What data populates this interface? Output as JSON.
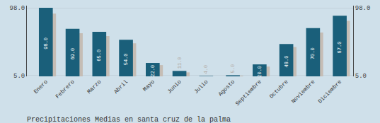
{
  "chart_data": {
    "type": "bar",
    "title": "Precipitaciones Medias en santa cruz de la palma",
    "categories": [
      "Enero",
      "Febrero",
      "Marzo",
      "Abril",
      "Mayo",
      "Junio",
      "Julio",
      "Agosto",
      "Septiembre",
      "Octubre",
      "Noviembre",
      "Diciembre"
    ],
    "series": [
      {
        "color": "#c5bdb5",
        "values": [
          90.0,
          63.0,
          59.0,
          49.0,
          19.0,
          9.0,
          3.5,
          4.5,
          17.0,
          44.0,
          64.0,
          80.0
        ]
      },
      {
        "color": "#1a5f7a",
        "values": [
          98.0,
          69.0,
          65.0,
          54.0,
          22.0,
          11.0,
          4.0,
          5.0,
          20.0,
          48.0,
          70.0,
          87.0
        ],
        "data_labels": true,
        "value_labels": [
          "98.0",
          "69.0",
          "65.0",
          "54.0",
          "22.0",
          "11.0",
          "4.0",
          "5.0",
          "20.0",
          "48.0",
          "70.0",
          "87.0"
        ]
      }
    ],
    "ylim": [
      3.5,
      101.0
    ],
    "yticks": [
      {
        "value": 5.0,
        "label": "5.0"
      },
      {
        "value": 98.0,
        "label": "98.0"
      }
    ],
    "y2lim": [
      3.5,
      101.0
    ],
    "y2ticks": [
      {
        "value": 5.0,
        "label": "5.0"
      },
      {
        "value": 98.0,
        "label": "98.0"
      }
    ],
    "grid": true
  }
}
